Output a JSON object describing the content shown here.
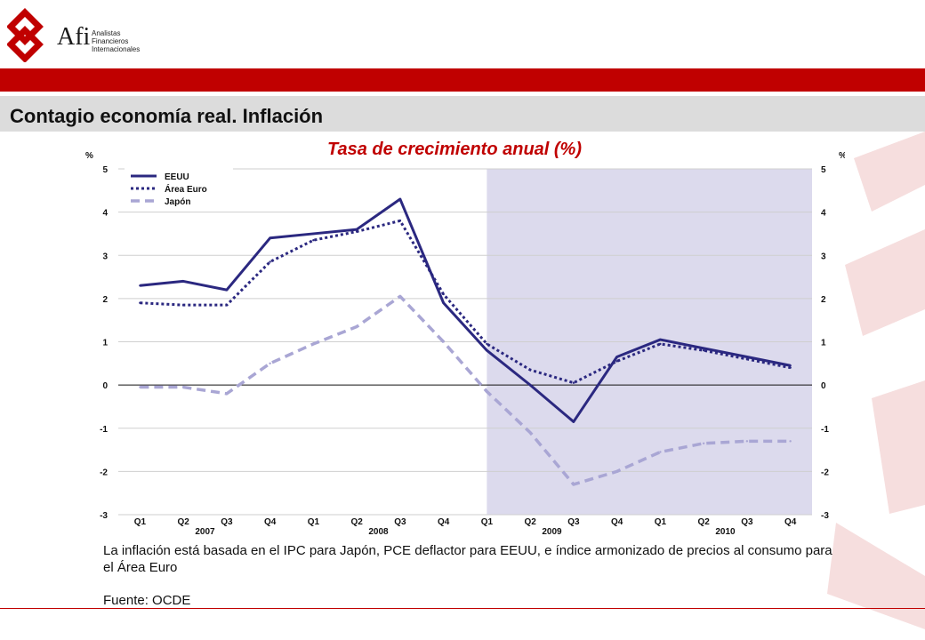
{
  "header": {
    "logo_text": "Afi",
    "logo_sub": [
      "Analistas",
      "Financieros",
      "Internacionales"
    ]
  },
  "page_title": "Contagio economía real. Inflación",
  "chart_title": "Tasa de crecimiento anual (%)",
  "colors": {
    "brand_red": "#c00000",
    "series_dark": "#2b2880",
    "series_light": "#a9a6d4",
    "shade": "#dcdaed"
  },
  "chart_data": {
    "type": "line",
    "title": "Tasa de crecimiento anual (%)",
    "y_unit": "%",
    "ylim": [
      -3,
      5
    ],
    "yticks": [
      "5",
      "4",
      "3",
      "2",
      "1",
      "0",
      "-1",
      "-2",
      "-3"
    ],
    "categories": [
      "Q1",
      "Q2",
      "Q3",
      "Q4",
      "Q1",
      "Q2",
      "Q3",
      "Q4",
      "Q1",
      "Q2",
      "Q3",
      "Q4",
      "Q1",
      "Q2",
      "Q3",
      "Q4"
    ],
    "year_labels": [
      {
        "label": "2007",
        "start": 0,
        "end": 3
      },
      {
        "label": "2008",
        "start": 4,
        "end": 7
      },
      {
        "label": "2009",
        "start": 8,
        "end": 11
      },
      {
        "label": "2010",
        "start": 12,
        "end": 15
      }
    ],
    "shaded_from_index": 8.5,
    "grid": "horizontal",
    "legend_position": "top-left",
    "series": [
      {
        "name": "EEUU",
        "style": "solid",
        "values": [
          2.3,
          2.4,
          2.2,
          3.4,
          3.5,
          3.6,
          4.3,
          1.9,
          0.8,
          0.0,
          -0.85,
          0.65,
          1.05,
          0.85,
          0.65,
          0.45
        ]
      },
      {
        "name": "Área Euro",
        "style": "dotted",
        "values": [
          1.9,
          1.85,
          1.85,
          2.85,
          3.35,
          3.55,
          3.8,
          2.1,
          0.95,
          0.35,
          0.05,
          0.55,
          0.95,
          0.8,
          0.6,
          0.4
        ]
      },
      {
        "name": "Japón",
        "style": "dashed",
        "values": [
          -0.05,
          -0.05,
          -0.2,
          0.5,
          0.95,
          1.35,
          2.05,
          1.0,
          -0.15,
          -1.1,
          -2.3,
          -2.0,
          -1.55,
          -1.35,
          -1.3,
          -1.3
        ]
      }
    ]
  },
  "footnote": "La inflación está basada en el IPC para Japón, PCE deflactor para EEUU, e índice armonizado de precios al consumo para el Área Euro",
  "source": "Fuente: OCDE"
}
